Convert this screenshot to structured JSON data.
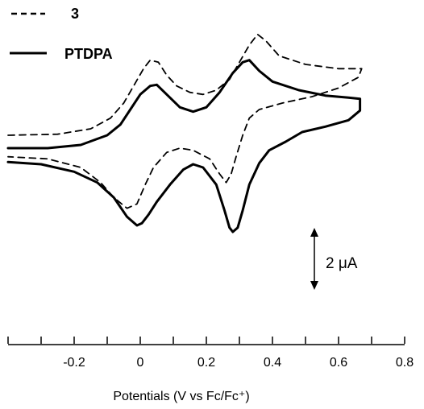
{
  "chart_data": {
    "type": "line",
    "title": "",
    "xlabel": "Potentials (V vs Fc/Fc⁺)",
    "ylabel": "",
    "xlim": [
      -0.4,
      0.8
    ],
    "ylim": [
      -8.4,
      4.8
    ],
    "x_ticks": [
      -0.2,
      0.0,
      0.2,
      0.4,
      0.6,
      0.8
    ],
    "x_tick_labels": [
      "-0.2",
      "0",
      "0.2",
      "0.4",
      "0.6",
      "0.8"
    ],
    "x_minor_step": 0.1,
    "grid": false,
    "legend_position": "top-left",
    "scale_bar": {
      "label": "2 μA",
      "value": 2
    },
    "series": [
      {
        "name": "3",
        "style": "dashed",
        "color": "#000000",
        "points": [
          [
            -0.4,
            0.0
          ],
          [
            -0.25,
            0.05
          ],
          [
            -0.15,
            0.3
          ],
          [
            -0.09,
            0.8
          ],
          [
            -0.05,
            1.5
          ],
          [
            -0.02,
            2.3
          ],
          [
            0.01,
            3.1
          ],
          [
            0.03,
            3.5
          ],
          [
            0.055,
            3.4
          ],
          [
            0.08,
            2.8
          ],
          [
            0.11,
            2.3
          ],
          [
            0.15,
            2.0
          ],
          [
            0.19,
            1.9
          ],
          [
            0.23,
            2.1
          ],
          [
            0.27,
            2.6
          ],
          [
            0.3,
            3.4
          ],
          [
            0.33,
            4.2
          ],
          [
            0.355,
            4.7
          ],
          [
            0.38,
            4.4
          ],
          [
            0.42,
            3.7
          ],
          [
            0.5,
            3.3
          ],
          [
            0.6,
            3.1
          ],
          [
            0.67,
            3.1
          ],
          [
            0.66,
            2.7
          ],
          [
            0.6,
            2.2
          ],
          [
            0.52,
            1.8
          ],
          [
            0.43,
            1.5
          ],
          [
            0.36,
            1.2
          ],
          [
            0.33,
            0.8
          ],
          [
            0.31,
            0.0
          ],
          [
            0.29,
            -1.0
          ],
          [
            0.275,
            -1.8
          ],
          [
            0.26,
            -2.2
          ],
          [
            0.24,
            -1.8
          ],
          [
            0.21,
            -1.1
          ],
          [
            0.16,
            -0.7
          ],
          [
            0.12,
            -0.6
          ],
          [
            0.08,
            -0.8
          ],
          [
            0.04,
            -1.5
          ],
          [
            0.015,
            -2.3
          ],
          [
            -0.01,
            -3.2
          ],
          [
            -0.04,
            -3.4
          ],
          [
            -0.08,
            -2.9
          ],
          [
            -0.12,
            -2.2
          ],
          [
            -0.18,
            -1.5
          ],
          [
            -0.28,
            -1.1
          ],
          [
            -0.4,
            -1.0
          ]
        ]
      },
      {
        "name": "PTDPA",
        "style": "solid",
        "color": "#000000",
        "points": [
          [
            -0.4,
            -0.6
          ],
          [
            -0.28,
            -0.6
          ],
          [
            -0.18,
            -0.45
          ],
          [
            -0.1,
            0.0
          ],
          [
            -0.06,
            0.5
          ],
          [
            -0.03,
            1.2
          ],
          [
            0.0,
            1.9
          ],
          [
            0.03,
            2.3
          ],
          [
            0.05,
            2.35
          ],
          [
            0.08,
            1.9
          ],
          [
            0.12,
            1.3
          ],
          [
            0.16,
            1.1
          ],
          [
            0.2,
            1.3
          ],
          [
            0.24,
            2.0
          ],
          [
            0.28,
            2.9
          ],
          [
            0.31,
            3.4
          ],
          [
            0.33,
            3.5
          ],
          [
            0.36,
            3.0
          ],
          [
            0.4,
            2.5
          ],
          [
            0.48,
            2.1
          ],
          [
            0.56,
            1.85
          ],
          [
            0.63,
            1.75
          ],
          [
            0.665,
            1.7
          ],
          [
            0.665,
            1.15
          ],
          [
            0.63,
            0.7
          ],
          [
            0.56,
            0.4
          ],
          [
            0.49,
            0.15
          ],
          [
            0.44,
            -0.3
          ],
          [
            0.39,
            -0.7
          ],
          [
            0.36,
            -1.3
          ],
          [
            0.33,
            -2.3
          ],
          [
            0.31,
            -3.5
          ],
          [
            0.295,
            -4.3
          ],
          [
            0.28,
            -4.5
          ],
          [
            0.27,
            -4.3
          ],
          [
            0.255,
            -3.5
          ],
          [
            0.23,
            -2.3
          ],
          [
            0.19,
            -1.5
          ],
          [
            0.16,
            -1.35
          ],
          [
            0.13,
            -1.6
          ],
          [
            0.09,
            -2.3
          ],
          [
            0.05,
            -3.1
          ],
          [
            0.025,
            -3.7
          ],
          [
            0.005,
            -4.1
          ],
          [
            -0.01,
            -4.2
          ],
          [
            -0.04,
            -3.8
          ],
          [
            -0.08,
            -2.9
          ],
          [
            -0.13,
            -2.2
          ],
          [
            -0.2,
            -1.7
          ],
          [
            -0.3,
            -1.35
          ],
          [
            -0.4,
            -1.25
          ]
        ]
      }
    ]
  }
}
